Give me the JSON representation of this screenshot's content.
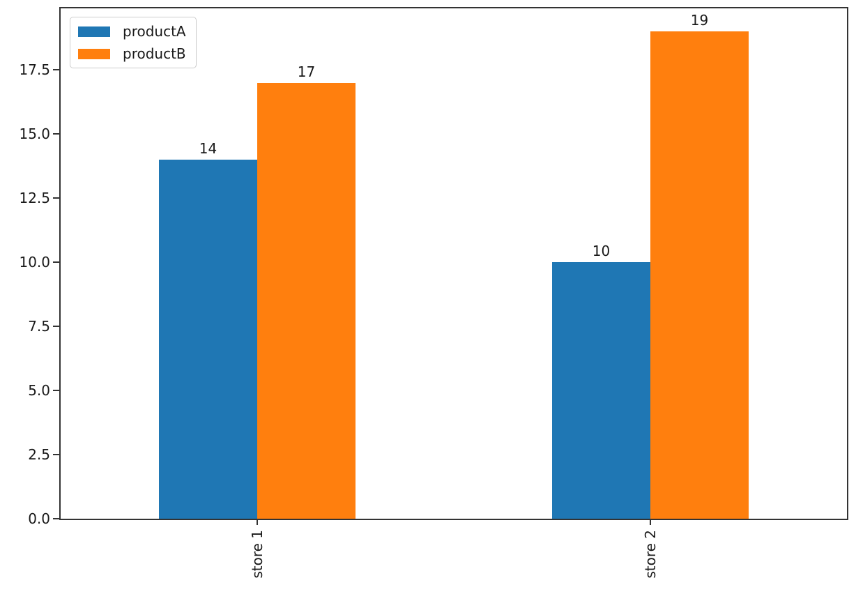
{
  "chart_data": {
    "type": "bar",
    "title": "",
    "xlabel": "",
    "ylabel": "",
    "categories": [
      "store 1",
      "store 2"
    ],
    "series": [
      {
        "name": "productA",
        "color": "#1f77b4",
        "values": [
          14,
          10
        ]
      },
      {
        "name": "productB",
        "color": "#ff7f0e",
        "values": [
          17,
          19
        ]
      }
    ],
    "value_labels": [
      [
        "14",
        "10"
      ],
      [
        "17",
        "19"
      ]
    ],
    "ytick_labels": [
      "0.0",
      "2.5",
      "5.0",
      "7.5",
      "10.0",
      "12.5",
      "15.0",
      "17.5"
    ],
    "ylim": [
      0,
      19.9
    ],
    "grid": false,
    "legend": {
      "position": "top-left",
      "entries": [
        "productA",
        "productB"
      ]
    },
    "xtick_rotation_deg": 90,
    "spine_color": "#333333",
    "text_color": "#1a1a1a",
    "background_color": "#ffffff"
  }
}
